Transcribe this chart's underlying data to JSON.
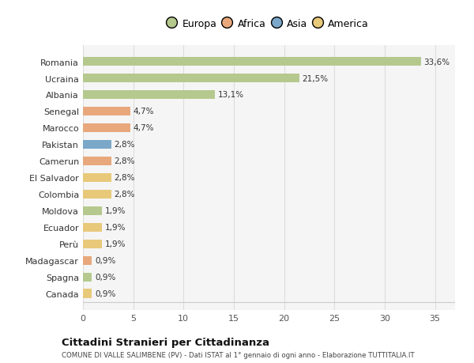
{
  "countries": [
    "Romania",
    "Ucraina",
    "Albania",
    "Senegal",
    "Marocco",
    "Pakistan",
    "Camerun",
    "El Salvador",
    "Colombia",
    "Moldova",
    "Ecuador",
    "Perù",
    "Madagascar",
    "Spagna",
    "Canada"
  ],
  "values": [
    33.6,
    21.5,
    13.1,
    4.7,
    4.7,
    2.8,
    2.8,
    2.8,
    2.8,
    1.9,
    1.9,
    1.9,
    0.9,
    0.9,
    0.9
  ],
  "labels": [
    "33,6%",
    "21,5%",
    "13,1%",
    "4,7%",
    "4,7%",
    "2,8%",
    "2,8%",
    "2,8%",
    "2,8%",
    "1,9%",
    "1,9%",
    "1,9%",
    "0,9%",
    "0,9%",
    "0,9%"
  ],
  "colors": [
    "#b5c98e",
    "#b5c98e",
    "#b5c98e",
    "#e8a87c",
    "#e8a87c",
    "#7ba7c9",
    "#e8a87c",
    "#e8c97a",
    "#e8c97a",
    "#b5c98e",
    "#e8c97a",
    "#e8c97a",
    "#e8a87c",
    "#b5c98e",
    "#e8c97a"
  ],
  "continent_colors": {
    "Europa": "#b5c98e",
    "Africa": "#e8a87c",
    "Asia": "#7ba7c9",
    "America": "#e8c97a"
  },
  "title": "Cittadini Stranieri per Cittadinanza",
  "subtitle": "COMUNE DI VALLE SALIMBENE (PV) - Dati ISTAT al 1° gennaio di ogni anno - Elaborazione TUTTITALIA.IT",
  "xlim": [
    0,
    37
  ],
  "xticks": [
    0,
    5,
    10,
    15,
    20,
    25,
    30,
    35
  ],
  "background_color": "#ffffff",
  "plot_background": "#f5f5f5",
  "grid_color": "#dddddd"
}
